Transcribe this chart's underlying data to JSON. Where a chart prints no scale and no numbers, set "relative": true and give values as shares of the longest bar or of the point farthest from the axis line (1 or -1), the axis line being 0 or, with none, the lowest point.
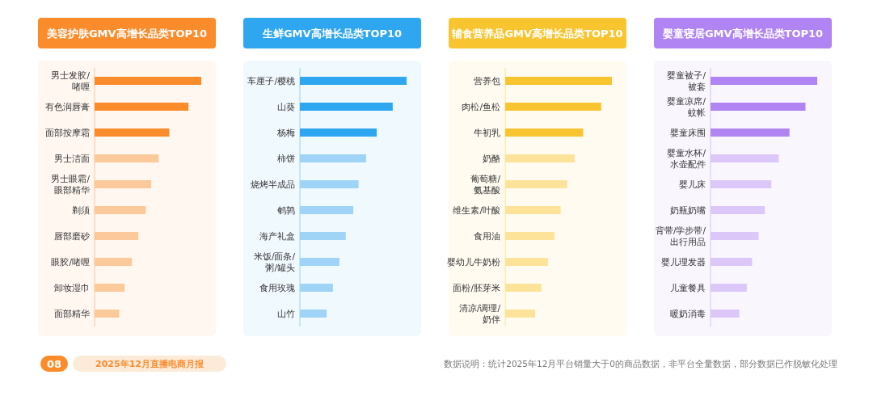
{
  "chart_data": [
    {
      "type": "bar",
      "orientation": "horizontal",
      "relative": true,
      "title": "美容护肤GMV高增长品类TOP10",
      "categories": [
        "男士发胶/啫喱",
        "有色润唇膏",
        "面部按摩霜",
        "男士洁面",
        "男士眼霜/眼部精华",
        "剃须",
        "唇部磨砂",
        "眼胶/啫喱",
        "卸妆湿巾",
        "面部精华"
      ],
      "values": [
        1,
        0.88,
        0.7,
        0.6,
        0.53,
        0.48,
        0.41,
        0.35,
        0.28,
        0.23
      ],
      "colors": [
        "#fb8c2c",
        "#fb8c2c",
        "#fb8c2c",
        "#fcc99a",
        "#fcc99a",
        "#fcc99a",
        "#fcc99a",
        "#fcc99a",
        "#fcc99a",
        "#fcc99a"
      ],
      "annotations": [
        "08",
        "2025年12月直播电商月报",
        "数据说明：统计2025年12月平台销量大于0的商品数据，非平台全量数据，部分数据已作脱敏化处理"
      ]
    },
    {
      "type": "bar",
      "orientation": "horizontal",
      "relative": true,
      "title": "生鲜GMV高增长品类TOP10",
      "categories": [
        "车厘子/樱桃",
        "山葵",
        "杨梅",
        "柿饼",
        "烧烤半成品",
        "鹌鹑",
        "海产礼盒",
        "米饭/面条/粥/罐头",
        "食用玫瑰",
        "山竹"
      ],
      "values": [
        1,
        0.87,
        0.72,
        0.62,
        0.55,
        0.5,
        0.43,
        0.37,
        0.31,
        0.25
      ],
      "colors": [
        "#2ea6f0",
        "#2ea6f0",
        "#2ea6f0",
        "#9fd4f7",
        "#9fd4f7",
        "#9fd4f7",
        "#9fd4f7",
        "#9fd4f7",
        "#9fd4f7",
        "#9fd4f7"
      ]
    },
    {
      "type": "bar",
      "orientation": "horizontal",
      "relative": true,
      "title": "辅食营养品GMV高增长品类TOP10",
      "categories": [
        "营养包",
        "肉松/鱼松",
        "牛初乳",
        "奶酪",
        "葡萄糖/氨基酸",
        "维生素/叶酸",
        "食用油",
        "婴幼儿牛奶粉",
        "面粉/胚芽米",
        "清凉/调理/奶伴"
      ],
      "values": [
        1,
        0.9,
        0.73,
        0.65,
        0.58,
        0.52,
        0.46,
        0.4,
        0.34,
        0.28
      ],
      "colors": [
        "#f8c531",
        "#f8c531",
        "#f8c531",
        "#fde39a",
        "#fde39a",
        "#fde39a",
        "#fde39a",
        "#fde39a",
        "#fde39a",
        "#fde39a"
      ]
    },
    {
      "type": "bar",
      "orientation": "horizontal",
      "relative": true,
      "title": "婴童寝居GMV高增长品类TOP10",
      "categories": [
        "婴童被子/被套",
        "婴童凉席/蚊帐",
        "婴童床围",
        "婴童水杯/水壶配件",
        "婴儿床",
        "奶瓶奶嘴",
        "背带/学步带/出行用品",
        "婴儿理发器",
        "儿童餐具",
        "暖奶消毒"
      ],
      "values": [
        1,
        0.89,
        0.74,
        0.64,
        0.57,
        0.51,
        0.45,
        0.39,
        0.34,
        0.27
      ],
      "colors": [
        "#b084f2",
        "#b084f2",
        "#b084f2",
        "#dcc8f8",
        "#dcc8f8",
        "#dcc8f8",
        "#dcc8f8",
        "#dcc8f8",
        "#dcc8f8",
        "#dcc8f8"
      ]
    }
  ]
}
